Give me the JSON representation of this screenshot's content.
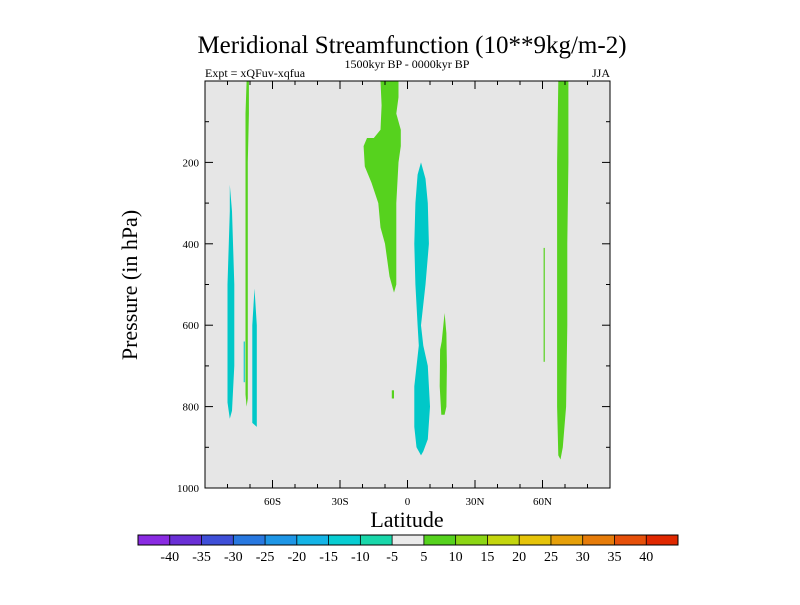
{
  "chart_data": {
    "type": "filled-contour",
    "title": "Meridional Streamfunction (10**9kg/m-2)",
    "left_subtitle": "Expt = xQFuv-xqfua",
    "center_subtitle": "1500kyr BP - 0000kyr BP",
    "right_subtitle": "JJA",
    "xlabel": "Latitude",
    "ylabel": "Pressure (in hPa)",
    "xlim": [
      -90,
      90
    ],
    "ylim": [
      1000,
      0
    ],
    "x_ticks": [
      {
        "value": -60,
        "label": "60S"
      },
      {
        "value": -30,
        "label": "30S"
      },
      {
        "value": 0,
        "label": "0"
      },
      {
        "value": 30,
        "label": "30N"
      },
      {
        "value": 60,
        "label": "60N"
      }
    ],
    "y_ticks": [
      {
        "value": 200,
        "label": "200"
      },
      {
        "value": 400,
        "label": "400"
      },
      {
        "value": 600,
        "label": "600"
      },
      {
        "value": 800,
        "label": "800"
      },
      {
        "value": 1000,
        "label": "1000"
      }
    ],
    "background_color": "#e6e6e6",
    "regions": [
      {
        "name": "cyan-60S-outer",
        "level": -10,
        "color": "#00c8c8",
        "points": [
          [
            -79,
            255
          ],
          [
            -78,
            320
          ],
          [
            -77,
            500
          ],
          [
            -77,
            700
          ],
          [
            -78,
            810
          ],
          [
            -79,
            830
          ],
          [
            -80,
            790
          ],
          [
            -80,
            700
          ],
          [
            -80,
            500
          ],
          [
            -79,
            320
          ]
        ]
      },
      {
        "name": "cyan-60S-inner",
        "level": -10,
        "color": "#00c8c8",
        "points": [
          [
            -68,
            510
          ],
          [
            -67,
            600
          ],
          [
            -67,
            780
          ],
          [
            -67,
            850
          ],
          [
            -69,
            840
          ],
          [
            -69,
            780
          ],
          [
            -69,
            600
          ]
        ]
      },
      {
        "name": "green-70S-strip",
        "level": 10,
        "color": "#56d21e",
        "points": [
          [
            -71.5,
            0
          ],
          [
            -70.5,
            0
          ],
          [
            -70.5,
            80
          ],
          [
            -71,
            200
          ],
          [
            -71,
            780
          ],
          [
            -71.5,
            800
          ],
          [
            -72,
            770
          ],
          [
            -72,
            200
          ],
          [
            -72,
            80
          ]
        ]
      },
      {
        "name": "cyan-70S-small",
        "level": -10,
        "color": "#00c8c8",
        "points": [
          [
            -72.8,
            640
          ],
          [
            -72.3,
            640
          ],
          [
            -72.3,
            740
          ],
          [
            -72.8,
            740
          ]
        ]
      },
      {
        "name": "green-tropics-upper",
        "level": 10,
        "color": "#56d21e",
        "points": [
          [
            -12,
            0
          ],
          [
            -4,
            0
          ],
          [
            -4,
            40
          ],
          [
            -5,
            80
          ],
          [
            -3,
            120
          ],
          [
            -3,
            160
          ],
          [
            -4,
            200
          ],
          [
            -5,
            300
          ],
          [
            -5,
            400
          ],
          [
            -5,
            500
          ],
          [
            -6,
            520
          ],
          [
            -8,
            480
          ],
          [
            -10,
            400
          ],
          [
            -12,
            360
          ],
          [
            -13,
            300
          ],
          [
            -16,
            250
          ],
          [
            -19,
            210
          ],
          [
            -19.5,
            160
          ],
          [
            -18,
            140
          ],
          [
            -15,
            140
          ],
          [
            -12,
            120
          ],
          [
            -11.5,
            60
          ]
        ]
      },
      {
        "name": "green-tropics-dot",
        "level": 10,
        "color": "#56d21e",
        "points": [
          [
            -7,
            760
          ],
          [
            -6,
            760
          ],
          [
            -6,
            780
          ],
          [
            -7,
            780
          ]
        ]
      },
      {
        "name": "cyan-equator",
        "level": -10,
        "color": "#00c8c8",
        "points": [
          [
            6,
            200
          ],
          [
            8,
            240
          ],
          [
            9,
            300
          ],
          [
            9.5,
            400
          ],
          [
            8,
            500
          ],
          [
            6,
            600
          ],
          [
            7,
            650
          ],
          [
            9,
            700
          ],
          [
            10,
            800
          ],
          [
            9,
            880
          ],
          [
            7,
            910
          ],
          [
            6,
            920
          ],
          [
            4,
            900
          ],
          [
            3,
            850
          ],
          [
            3,
            750
          ],
          [
            5,
            650
          ],
          [
            4.5,
            600
          ],
          [
            3.5,
            500
          ],
          [
            3,
            400
          ],
          [
            3.5,
            300
          ],
          [
            4.5,
            230
          ]
        ]
      },
      {
        "name": "green-15N",
        "level": 10,
        "color": "#56d21e",
        "points": [
          [
            16.5,
            570
          ],
          [
            17.3,
            620
          ],
          [
            17.5,
            700
          ],
          [
            17.3,
            800
          ],
          [
            16.5,
            820
          ],
          [
            15,
            820
          ],
          [
            14.3,
            750
          ],
          [
            14.5,
            660
          ],
          [
            15.2,
            640
          ]
        ]
      },
      {
        "name": "green-60N-thin",
        "level": 10,
        "color": "#56d21e",
        "points": [
          [
            60.5,
            410
          ],
          [
            61,
            410
          ],
          [
            61,
            690
          ],
          [
            60.5,
            690
          ]
        ]
      },
      {
        "name": "green-65N-strip",
        "level": 10,
        "color": "#56d21e",
        "points": [
          [
            67,
            0
          ],
          [
            71.5,
            0
          ],
          [
            71.5,
            200
          ],
          [
            71,
            400
          ],
          [
            71,
            600
          ],
          [
            70.5,
            800
          ],
          [
            69,
            900
          ],
          [
            68,
            930
          ],
          [
            67,
            920
          ],
          [
            66.5,
            800
          ],
          [
            66.5,
            600
          ],
          [
            66.5,
            400
          ],
          [
            66.5,
            200
          ]
        ]
      }
    ],
    "colorbar": {
      "levels": [
        -40,
        -35,
        -30,
        -25,
        -20,
        -15,
        -10,
        -5,
        5,
        10,
        15,
        20,
        25,
        30,
        35,
        40
      ],
      "colors": [
        "#8a2be2",
        "#6a2fd6",
        "#3f4fd8",
        "#2878e0",
        "#1e96e6",
        "#14b4e6",
        "#08cdd2",
        "#19d7aa",
        "#ebebeb",
        "#56d21e",
        "#8cd614",
        "#c4d60e",
        "#e6c40a",
        "#e6a00a",
        "#e67c0a",
        "#e6500a",
        "#e02800"
      ]
    }
  }
}
